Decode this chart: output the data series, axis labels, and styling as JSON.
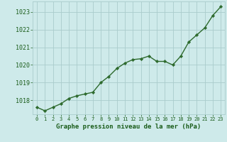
{
  "x": [
    0,
    1,
    2,
    3,
    4,
    5,
    6,
    7,
    8,
    9,
    10,
    11,
    12,
    13,
    14,
    15,
    16,
    17,
    18,
    19,
    20,
    21,
    22,
    23
  ],
  "y": [
    1017.6,
    1017.4,
    1017.6,
    1017.8,
    1018.1,
    1018.25,
    1018.35,
    1018.45,
    1019.0,
    1019.35,
    1019.8,
    1020.1,
    1020.3,
    1020.35,
    1020.5,
    1020.2,
    1020.2,
    1020.0,
    1020.5,
    1021.3,
    1021.7,
    1022.1,
    1022.8,
    1023.3
  ],
  "line_color": "#2d6a2d",
  "marker": "D",
  "marker_size": 2.2,
  "bg_color": "#ceeaea",
  "grid_color": "#aacccc",
  "xlabel": "Graphe pression niveau de la mer (hPa)",
  "xlabel_color": "#1a5c1a",
  "tick_color": "#1a5c1a",
  "ylim": [
    1017.2,
    1023.6
  ],
  "yticks": [
    1018,
    1019,
    1020,
    1021,
    1022,
    1023
  ],
  "xlim": [
    -0.5,
    23.5
  ],
  "line_width": 1.0
}
